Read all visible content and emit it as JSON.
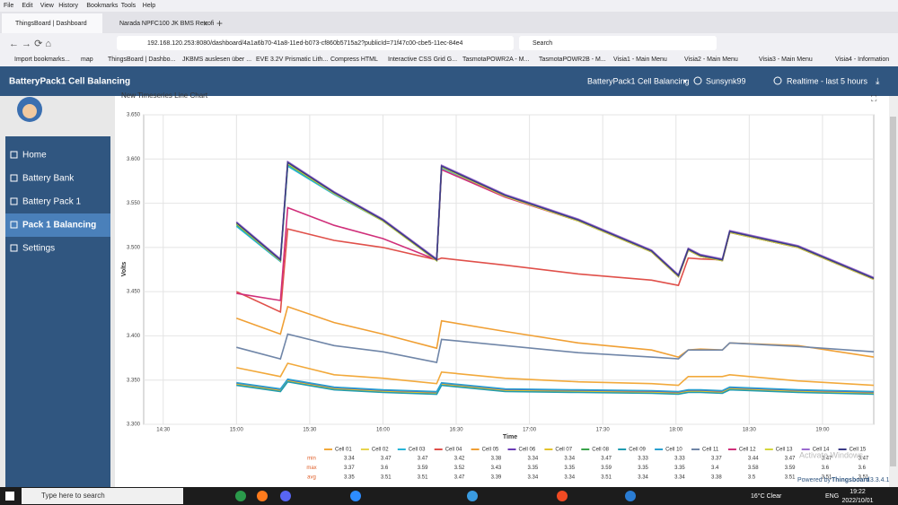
{
  "browser": {
    "menu": [
      "File",
      "Edit",
      "View",
      "History",
      "Bookmarks",
      "Tools",
      "Help"
    ],
    "tabs": [
      "ThingsBoard | Dashboard",
      "Narada NPFC100 JK BMS Retrofi"
    ],
    "url": "192.168.120.253:8080/dashboard/4a1a6b70-41a8-11ed-b073-cf860b5715a2?publicId=71f47c00-cbe5-11ec-84e4",
    "search": "Search",
    "bookmarks": [
      "Import bookmarks...",
      "map",
      "ThingsBoard | Dashbo...",
      "JKBMS auslesen über ...",
      "EVE 3.2V Prismatic Lith...",
      "Compress HTML",
      "Interactive CSS Grid G...",
      "TasmotaPOWR2A - M...",
      "TasmotaPOWR2B - M...",
      "Visia1 - Main Menu",
      "Visia2 - Main Menu",
      "Visia3 - Main Menu",
      "Visia4 - Information"
    ]
  },
  "header": {
    "title": "BatteryPack1 Cell Balancing",
    "dashboard_select": "BatteryPack1 Cell Balancing",
    "user": "Sunsynk99",
    "timewindow": "Realtime - last 5 hours"
  },
  "sidebar": {
    "items": [
      "Home",
      "Battery Bank",
      "Battery Pack 1",
      "Pack 1 Balancing",
      "Settings"
    ]
  },
  "chart_data": {
    "type": "line",
    "title": "New Timeseries Line Chart",
    "x_label": "Time",
    "y_label": "Volts",
    "x": [
      "15:00",
      "15:18",
      "15:21",
      "15:40",
      "16:00",
      "16:22",
      "16:24",
      "16:50",
      "17:20",
      "17:50",
      "18:01",
      "18:05",
      "18:10",
      "18:19",
      "18:22",
      "18:50",
      "19:21"
    ],
    "xlim": [
      "14:22",
      "19:21"
    ],
    "xticks": [
      "14:30",
      "15:00",
      "15:30",
      "16:00",
      "16:30",
      "17:00",
      "17:30",
      "18:00",
      "18:30",
      "19:00"
    ],
    "ylim": [
      3.3,
      3.65
    ],
    "yticks": [
      {
        "value": 3.3,
        "label": "3.300"
      },
      {
        "value": 3.35,
        "label": "3.350"
      },
      {
        "value": 3.4,
        "label": "3.400"
      },
      {
        "value": 3.45,
        "label": "3.450"
      },
      {
        "value": 3.5,
        "label": "3.500"
      },
      {
        "value": 3.55,
        "label": "3.550"
      },
      {
        "value": 3.6,
        "label": "3.600"
      },
      {
        "value": 3.65,
        "label": "3.650"
      }
    ],
    "grid": true,
    "series": [
      {
        "name": "Cell 01",
        "color": "#f2a93b",
        "values": [
          3.364,
          3.354,
          3.369,
          3.356,
          3.352,
          3.346,
          3.359,
          3.352,
          3.348,
          3.346,
          3.344,
          3.354,
          3.354,
          3.354,
          3.356,
          3.349,
          3.344
        ]
      },
      {
        "name": "Cell 02",
        "color": "#e8d44d",
        "values": [
          3.528,
          3.486,
          3.596,
          3.562,
          3.531,
          3.486,
          3.592,
          3.559,
          3.531,
          3.496,
          3.468,
          3.498,
          3.491,
          3.486,
          3.518,
          3.501,
          3.465
        ]
      },
      {
        "name": "Cell 03",
        "color": "#26b4d8",
        "values": [
          3.524,
          3.484,
          3.592,
          3.56,
          3.53,
          3.485,
          3.59,
          3.558,
          3.53,
          3.495,
          3.467,
          3.497,
          3.49,
          3.485,
          3.517,
          3.5,
          3.464
        ]
      },
      {
        "name": "Cell 04",
        "color": "#e0504a",
        "values": [
          3.45,
          3.427,
          3.521,
          3.508,
          3.5,
          3.486,
          3.488,
          3.48,
          3.47,
          3.463,
          3.457,
          3.488,
          3.487,
          3.486,
          3.517,
          3.5,
          3.464
        ]
      },
      {
        "name": "Cell 05",
        "color": "#f0a035",
        "values": [
          3.42,
          3.402,
          3.433,
          3.415,
          3.402,
          3.386,
          3.417,
          3.405,
          3.392,
          3.384,
          3.376,
          3.384,
          3.385,
          3.384,
          3.392,
          3.389,
          3.376
        ]
      },
      {
        "name": "Cell 06",
        "color": "#6a3cb5",
        "values": [
          3.346,
          3.339,
          3.35,
          3.341,
          3.338,
          3.336,
          3.346,
          3.339,
          3.338,
          3.337,
          3.336,
          3.338,
          3.338,
          3.337,
          3.341,
          3.338,
          3.336
        ]
      },
      {
        "name": "Cell 07",
        "color": "#e3c22b",
        "values": [
          3.345,
          3.338,
          3.349,
          3.34,
          3.337,
          3.335,
          3.345,
          3.338,
          3.337,
          3.336,
          3.335,
          3.337,
          3.337,
          3.336,
          3.34,
          3.337,
          3.335
        ]
      },
      {
        "name": "Cell 08",
        "color": "#3aa34a",
        "values": [
          3.526,
          3.485,
          3.594,
          3.561,
          3.53,
          3.485,
          3.591,
          3.558,
          3.53,
          3.495,
          3.467,
          3.497,
          3.49,
          3.485,
          3.517,
          3.5,
          3.464
        ]
      },
      {
        "name": "Cell 09",
        "color": "#1f9bb0",
        "values": [
          3.344,
          3.337,
          3.348,
          3.339,
          3.336,
          3.334,
          3.344,
          3.337,
          3.336,
          3.335,
          3.334,
          3.336,
          3.336,
          3.335,
          3.339,
          3.336,
          3.334
        ]
      },
      {
        "name": "Cell 10",
        "color": "#2aa0d0",
        "values": [
          3.347,
          3.34,
          3.351,
          3.342,
          3.339,
          3.337,
          3.347,
          3.34,
          3.339,
          3.338,
          3.337,
          3.339,
          3.339,
          3.338,
          3.342,
          3.339,
          3.337
        ]
      },
      {
        "name": "Cell 11",
        "color": "#7086a8",
        "values": [
          3.387,
          3.374,
          3.402,
          3.389,
          3.382,
          3.37,
          3.396,
          3.389,
          3.381,
          3.376,
          3.374,
          3.384,
          3.384,
          3.384,
          3.392,
          3.388,
          3.382
        ]
      },
      {
        "name": "Cell 12",
        "color": "#d02f7a",
        "values": [
          3.448,
          3.44,
          3.545,
          3.525,
          3.51,
          3.486,
          3.588,
          3.557,
          3.53,
          3.495,
          3.467,
          3.497,
          3.49,
          3.485,
          3.517,
          3.5,
          3.464
        ]
      },
      {
        "name": "Cell 13",
        "color": "#d4d63c",
        "values": [
          3.527,
          3.485,
          3.595,
          3.561,
          3.53,
          3.485,
          3.591,
          3.558,
          3.53,
          3.495,
          3.467,
          3.497,
          3.49,
          3.485,
          3.517,
          3.5,
          3.464
        ]
      },
      {
        "name": "Cell 14",
        "color": "#9b6bd0",
        "values": [
          3.529,
          3.487,
          3.597,
          3.563,
          3.532,
          3.487,
          3.593,
          3.56,
          3.532,
          3.497,
          3.469,
          3.499,
          3.492,
          3.487,
          3.519,
          3.502,
          3.466
        ]
      },
      {
        "name": "Cell 15",
        "color": "#3b3b86",
        "values": [
          3.528,
          3.486,
          3.596,
          3.562,
          3.531,
          3.486,
          3.592,
          3.559,
          3.531,
          3.496,
          3.468,
          3.498,
          3.491,
          3.486,
          3.518,
          3.501,
          3.465
        ]
      }
    ],
    "legend_table": [
      {
        "label": "min",
        "values": [
          3.34,
          3.47,
          3.47,
          3.42,
          3.38,
          3.34,
          3.34,
          3.47,
          3.33,
          3.33,
          3.37,
          3.44,
          3.47,
          3.47,
          3.47
        ]
      },
      {
        "label": "max",
        "values": [
          3.37,
          3.6,
          3.59,
          3.52,
          3.43,
          3.35,
          3.35,
          3.59,
          3.35,
          3.35,
          3.4,
          3.58,
          3.59,
          3.6,
          3.6
        ]
      },
      {
        "label": "avg",
        "values": [
          3.35,
          3.51,
          3.51,
          3.47,
          3.39,
          3.34,
          3.34,
          3.51,
          3.34,
          3.34,
          3.38,
          3.5,
          3.51,
          3.51,
          3.51
        ]
      }
    ]
  },
  "footer": {
    "powered": "Powered by",
    "brand": "Thingsboard",
    "version": "v.3.3.4.1"
  },
  "watermark": "Activate Windows",
  "taskbar": {
    "search": "Type here to search",
    "weather": "16°C  Clear",
    "lang": "ENG",
    "time": "19:22",
    "date": "2022/10/01"
  }
}
